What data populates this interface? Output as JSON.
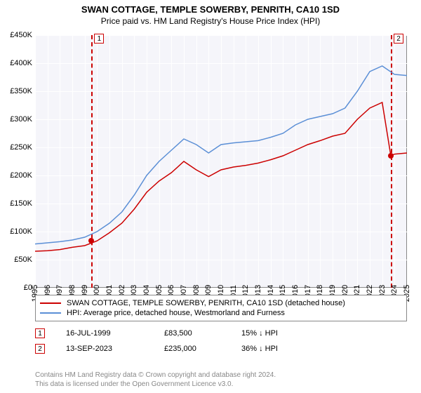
{
  "title": "SWAN COTTAGE, TEMPLE SOWERBY, PENRITH, CA10 1SD",
  "subtitle": "Price paid vs. HM Land Registry's House Price Index (HPI)",
  "chart": {
    "type": "line",
    "background_color": "#f5f5fa",
    "grid_color": "#ffffff",
    "border_color": "#888888",
    "ylim": [
      0,
      450000
    ],
    "ytick_step": 50000,
    "yticks": [
      "£0",
      "£50K",
      "£100K",
      "£150K",
      "£200K",
      "£250K",
      "£300K",
      "£350K",
      "£400K",
      "£450K"
    ],
    "xlim": [
      1995,
      2025
    ],
    "xticks": [
      1995,
      1996,
      1997,
      1998,
      1999,
      2000,
      2001,
      2002,
      2003,
      2004,
      2005,
      2006,
      2007,
      2008,
      2009,
      2010,
      2011,
      2012,
      2013,
      2014,
      2015,
      2016,
      2017,
      2018,
      2019,
      2020,
      2021,
      2022,
      2023,
      2024,
      2025
    ],
    "series": [
      {
        "name": "SWAN COTTAGE, TEMPLE SOWERBY, PENRITH, CA10 1SD (detached house)",
        "color": "#cc0000",
        "line_width": 1.5,
        "x": [
          1995,
          1996,
          1997,
          1998,
          1999,
          2000,
          2001,
          2002,
          2003,
          2004,
          2005,
          2006,
          2007,
          2008,
          2009,
          2010,
          2011,
          2012,
          2013,
          2014,
          2015,
          2016,
          2017,
          2018,
          2019,
          2020,
          2021,
          2022,
          2023,
          2023.7,
          2024,
          2025
        ],
        "y": [
          65000,
          66000,
          68000,
          72000,
          75000,
          83500,
          98000,
          115000,
          140000,
          170000,
          190000,
          205000,
          225000,
          210000,
          198000,
          210000,
          215000,
          218000,
          222000,
          228000,
          235000,
          245000,
          255000,
          262000,
          270000,
          275000,
          300000,
          320000,
          330000,
          235000,
          238000,
          240000
        ]
      },
      {
        "name": "HPI: Average price, detached house, Westmorland and Furness",
        "color": "#5b8fd6",
        "line_width": 1.5,
        "x": [
          1995,
          1996,
          1997,
          1998,
          1999,
          2000,
          2001,
          2002,
          2003,
          2004,
          2005,
          2006,
          2007,
          2008,
          2009,
          2010,
          2011,
          2012,
          2013,
          2014,
          2015,
          2016,
          2017,
          2018,
          2019,
          2020,
          2021,
          2022,
          2023,
          2024,
          2025
        ],
        "y": [
          78000,
          80000,
          82000,
          85000,
          90000,
          100000,
          115000,
          135000,
          165000,
          200000,
          225000,
          245000,
          265000,
          255000,
          240000,
          255000,
          258000,
          260000,
          262000,
          268000,
          275000,
          290000,
          300000,
          305000,
          310000,
          320000,
          350000,
          385000,
          395000,
          380000,
          378000
        ]
      }
    ],
    "markers": [
      {
        "label": "1",
        "x": 1999.55,
        "dot_y": 83500
      },
      {
        "label": "2",
        "x": 2023.7,
        "dot_y": 235000
      }
    ]
  },
  "legend": {
    "items": [
      {
        "color": "#cc0000",
        "label": "SWAN COTTAGE, TEMPLE SOWERBY, PENRITH, CA10 1SD (detached house)"
      },
      {
        "color": "#5b8fd6",
        "label": "HPI: Average price, detached house, Westmorland and Furness"
      }
    ]
  },
  "events": [
    {
      "label": "1",
      "date": "16-JUL-1999",
      "price": "£83,500",
      "delta": "15% ↓ HPI"
    },
    {
      "label": "2",
      "date": "13-SEP-2023",
      "price": "£235,000",
      "delta": "36% ↓ HPI"
    }
  ],
  "footnote_line1": "Contains HM Land Registry data © Crown copyright and database right 2024.",
  "footnote_line2": "This data is licensed under the Open Government Licence v3.0."
}
